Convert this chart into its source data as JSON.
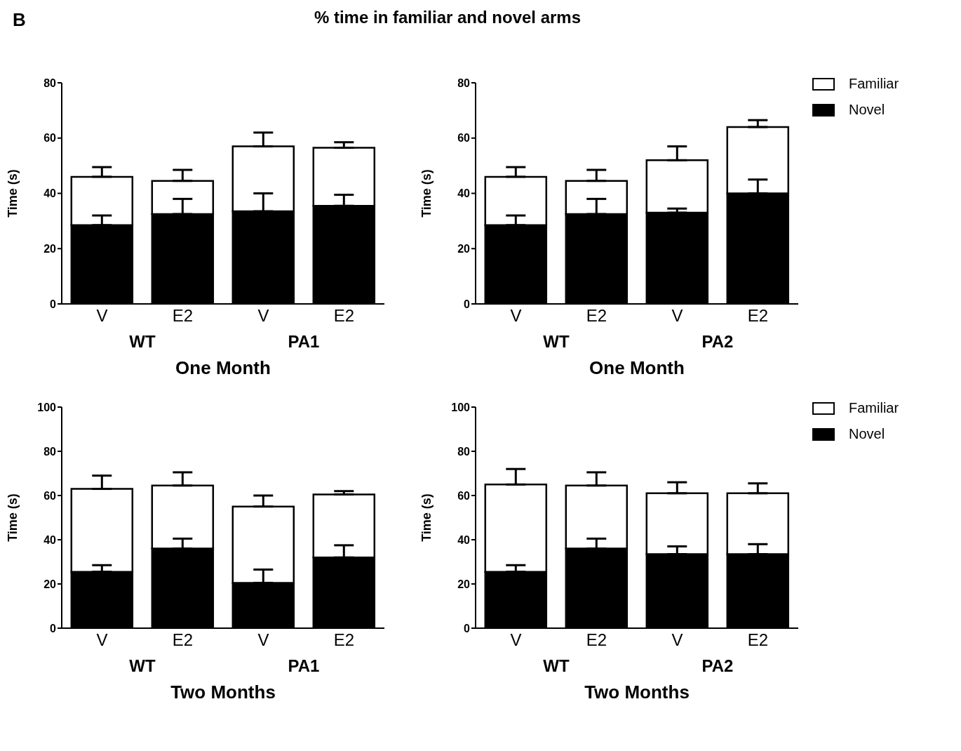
{
  "chart_data": [
    {
      "type": "bar",
      "title": "% time in familiar and novel arms",
      "stacked": true,
      "categories": [
        "V",
        "E2",
        "V",
        "E2"
      ],
      "xlabel": "One Month",
      "ylabel": "Time (s)",
      "ylim": [
        0,
        80
      ],
      "yticks": [
        0,
        20,
        40,
        60,
        80
      ],
      "legend": false,
      "annotations": [
        "WT",
        "PA1",
        "B"
      ],
      "series": [
        {
          "color": "#000000",
          "values": [
            28.5,
            32.5,
            33.5,
            35.5
          ],
          "errors": [
            [
              28.5,
              32
            ],
            [
              32.5,
              38
            ],
            [
              33.5,
              40
            ],
            [
              35.5,
              39.5
            ]
          ]
        },
        {
          "color": "#ffffff",
          "values": [
            17.5,
            12,
            23.5,
            21
          ],
          "errors": [
            [
              46,
              49.5
            ],
            [
              44.5,
              48.5
            ],
            [
              57,
              62
            ],
            [
              56.5,
              58.5
            ]
          ]
        }
      ]
    },
    {
      "type": "bar",
      "stacked": true,
      "categories": [
        "V",
        "E2",
        "V",
        "E2"
      ],
      "xlabel": "One Month",
      "ylabel": "Time (s)",
      "ylim": [
        0,
        80
      ],
      "yticks": [
        0,
        20,
        40,
        60,
        80
      ],
      "legend": "right",
      "annotations": [
        "WT",
        "PA2"
      ],
      "series": [
        {
          "name": "Novel",
          "color": "#000000",
          "values": [
            28.5,
            32.5,
            33,
            40
          ],
          "errors": [
            [
              28.5,
              32
            ],
            [
              32.5,
              38
            ],
            [
              33,
              34.5
            ],
            [
              40,
              45
            ]
          ]
        },
        {
          "name": "Familiar",
          "color": "#ffffff",
          "values": [
            17.5,
            12,
            19,
            24
          ],
          "errors": [
            [
              46,
              49.5
            ],
            [
              44.5,
              48.5
            ],
            [
              52,
              57
            ],
            [
              64,
              66.5
            ]
          ]
        }
      ]
    },
    {
      "type": "bar",
      "stacked": true,
      "categories": [
        "V",
        "E2",
        "V",
        "E2"
      ],
      "xlabel": "Two Months",
      "ylabel": "Time (s)",
      "ylim": [
        0,
        100
      ],
      "yticks": [
        0,
        20,
        40,
        60,
        80,
        100
      ],
      "legend": false,
      "annotations": [
        "WT",
        "PA1"
      ],
      "series": [
        {
          "color": "#000000",
          "values": [
            25.5,
            36,
            20.5,
            32
          ],
          "errors": [
            [
              25.5,
              28.5
            ],
            [
              36,
              40.5
            ],
            [
              20.5,
              26.5
            ],
            [
              32,
              37.5
            ]
          ]
        },
        {
          "color": "#ffffff",
          "values": [
            37.5,
            28.5,
            34.5,
            28.5
          ],
          "errors": [
            [
              63,
              69
            ],
            [
              64.5,
              70.5
            ],
            [
              55,
              60
            ],
            [
              60.5,
              62
            ]
          ]
        }
      ]
    },
    {
      "type": "bar",
      "stacked": true,
      "categories": [
        "V",
        "E2",
        "V",
        "E2"
      ],
      "xlabel": "Two Months",
      "ylabel": "Time (s)",
      "ylim": [
        0,
        100
      ],
      "yticks": [
        0,
        20,
        40,
        60,
        80,
        100
      ],
      "legend": "right",
      "annotations": [
        "WT",
        "PA2"
      ],
      "series": [
        {
          "name": "Novel",
          "color": "#000000",
          "values": [
            25.5,
            36,
            33.5,
            33.5
          ],
          "errors": [
            [
              25.5,
              28.5
            ],
            [
              36,
              40.5
            ],
            [
              33.5,
              37
            ],
            [
              33.5,
              38
            ]
          ]
        },
        {
          "name": "Familiar",
          "color": "#ffffff",
          "values": [
            39.5,
            28.5,
            27.5,
            27.5
          ],
          "errors": [
            [
              65,
              72
            ],
            [
              64.5,
              70.5
            ],
            [
              61,
              66
            ],
            [
              61,
              65.5
            ]
          ]
        }
      ]
    }
  ]
}
